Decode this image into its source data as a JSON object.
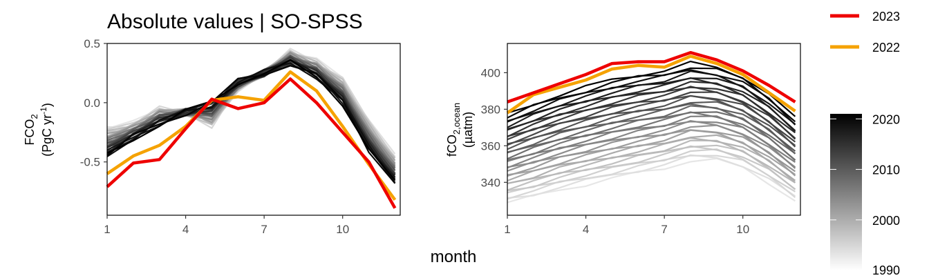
{
  "figure": {
    "title": "Absolute values | SO-SPSS",
    "shared_xlabel": "month",
    "legend": {
      "entries": [
        {
          "label": "2023",
          "color": "#ee0000"
        },
        {
          "label": "2022",
          "color": "#f5a200"
        }
      ],
      "colorbar": {
        "labels": [
          "2020",
          "2010",
          "2000",
          "1990"
        ],
        "range": [
          1990,
          2021
        ],
        "color_low": "#ffffff",
        "color_high": "#000000"
      }
    }
  },
  "chart_data": [
    {
      "type": "line",
      "ylabel_line1": "FCO",
      "ylabel_sub": "2",
      "ylabel_line2": "(PgC yr",
      "ylabel_sup": "-1",
      "ylabel_close": ")",
      "xlim": [
        1,
        12.2
      ],
      "ylim": [
        -0.95,
        0.5
      ],
      "x": [
        1,
        2,
        3,
        4,
        5,
        6,
        7,
        8,
        9,
        10,
        11,
        12
      ],
      "xticks": [
        1,
        4,
        7,
        10
      ],
      "yticks": [
        0.5,
        0.0,
        -0.5
      ],
      "ytick_labels": [
        "0.5",
        "0.0",
        "-0.5"
      ],
      "grid": false,
      "history": {
        "start_year": 1990,
        "end_year": 2021,
        "early": [
          -0.22,
          -0.18,
          -0.05,
          -0.08,
          -0.2,
          0.12,
          0.25,
          0.43,
          0.35,
          0.2,
          -0.15,
          -0.45
        ],
        "late": [
          -0.45,
          -0.3,
          -0.18,
          -0.08,
          0.0,
          0.18,
          0.25,
          0.33,
          0.22,
          0.0,
          -0.4,
          -0.68
        ]
      },
      "series": [
        {
          "name": "2023",
          "color": "#ee0000",
          "values": [
            -0.71,
            -0.51,
            -0.48,
            -0.22,
            0.03,
            -0.05,
            0.0,
            0.2,
            0.0,
            -0.25,
            -0.5,
            -0.89
          ]
        },
        {
          "name": "2022",
          "color": "#f5a200",
          "values": [
            -0.6,
            -0.45,
            -0.36,
            -0.2,
            0.02,
            0.05,
            0.02,
            0.26,
            0.1,
            -0.2,
            -0.52,
            -0.82
          ]
        }
      ]
    },
    {
      "type": "line",
      "ylabel_line1": "fCO",
      "ylabel_sub": "2,ocean",
      "ylabel_line2": "(µatm)",
      "xlim": [
        1,
        12.2
      ],
      "ylim": [
        322,
        416
      ],
      "x": [
        1,
        2,
        3,
        4,
        5,
        6,
        7,
        8,
        9,
        10,
        11,
        12
      ],
      "xticks": [
        1,
        4,
        7,
        10
      ],
      "yticks": [
        400,
        380,
        360,
        340
      ],
      "ytick_labels": [
        "400",
        "380",
        "360",
        "340"
      ],
      "grid": false,
      "history": {
        "start_year": 1990,
        "end_year": 2021,
        "early": [
          329,
          332,
          336,
          339,
          342,
          345,
          348,
          352,
          352,
          348,
          340,
          330
        ],
        "late": [
          377,
          383,
          388,
          392,
          396,
          399,
          401,
          405,
          403,
          398,
          388,
          375
        ]
      },
      "series": [
        {
          "name": "2023",
          "color": "#ee0000",
          "values": [
            384,
            389,
            394,
            399,
            405,
            406,
            406,
            411,
            407,
            401,
            393,
            384
          ]
        },
        {
          "name": "2022",
          "color": "#f5a200",
          "values": [
            378,
            388,
            392,
            396,
            402,
            404,
            403,
            409,
            405,
            399,
            389,
            379
          ]
        }
      ]
    }
  ]
}
